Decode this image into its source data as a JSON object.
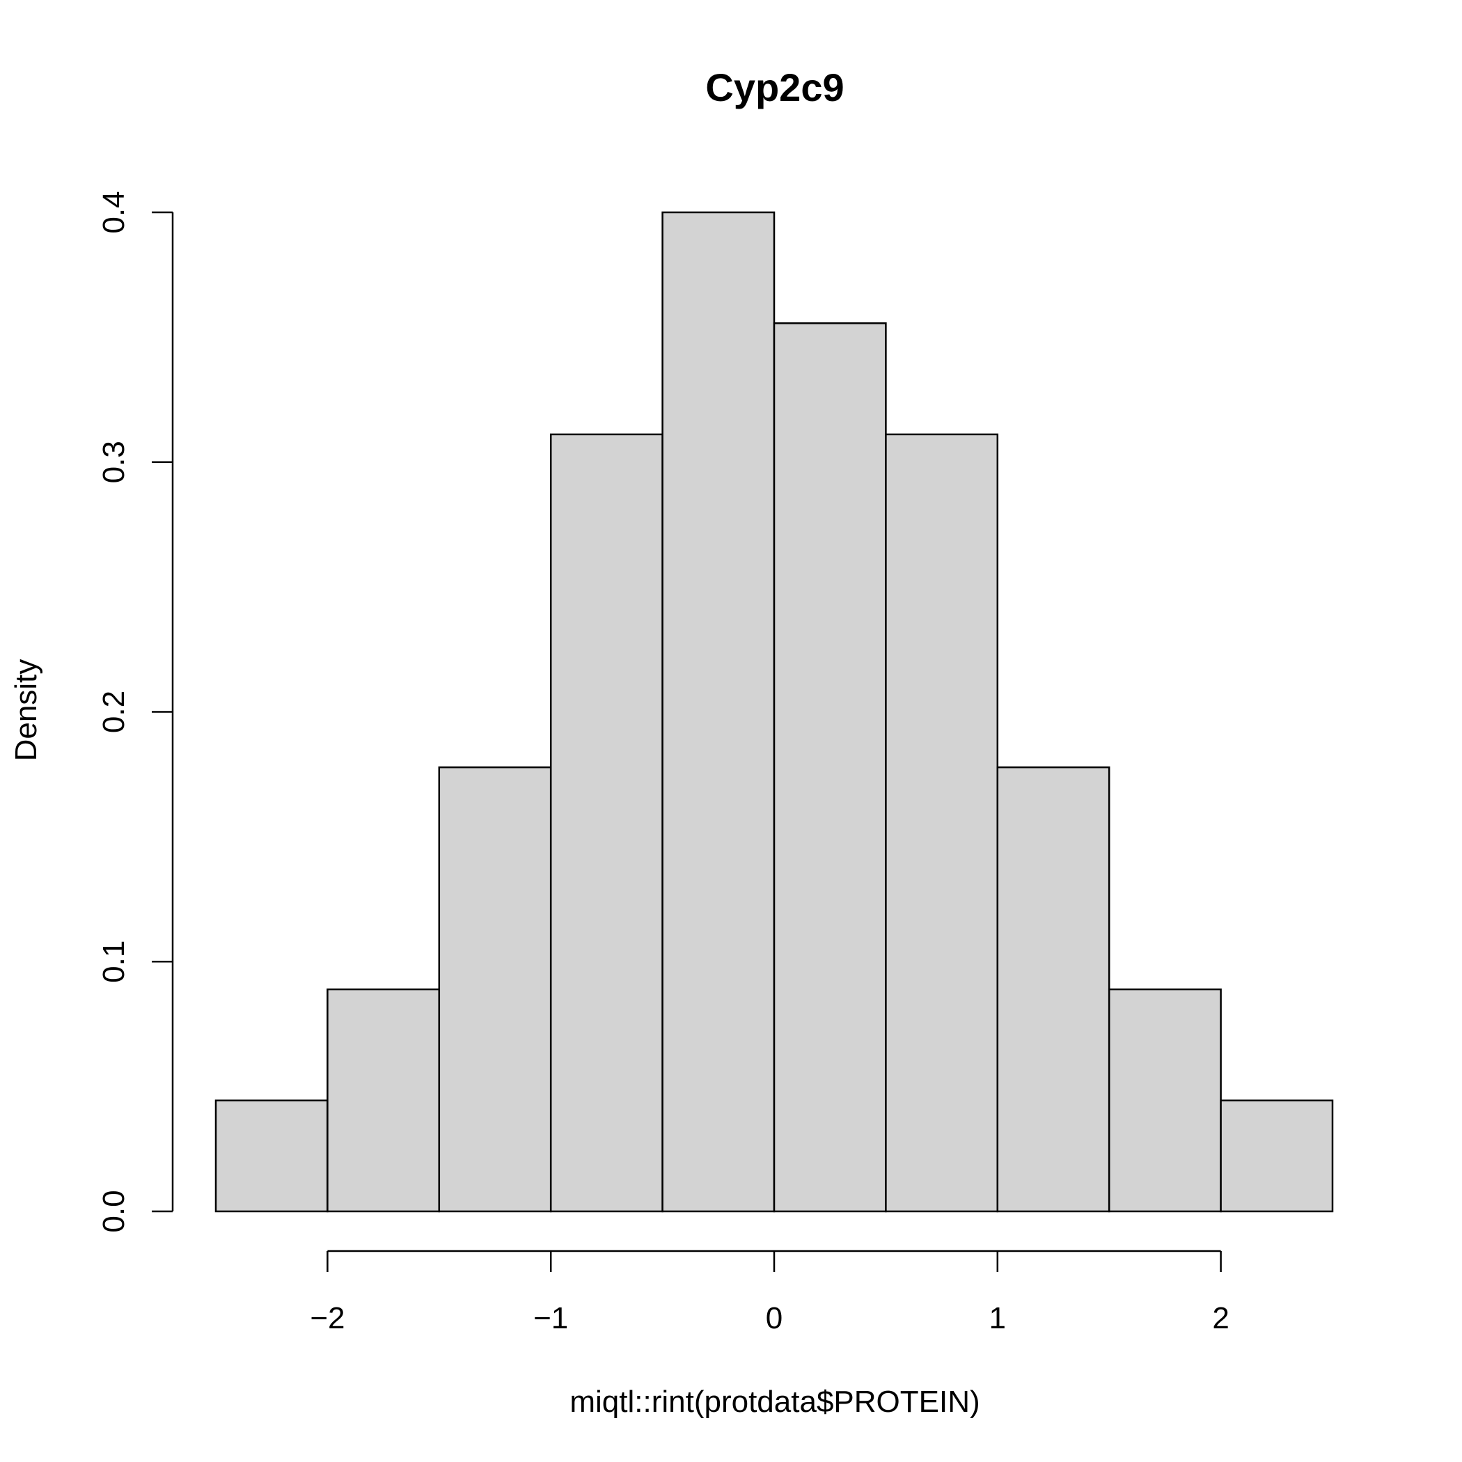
{
  "chart_data": {
    "type": "bar",
    "subtype": "histogram",
    "title": "Cyp2c9",
    "xlabel": "miqtl::rint(protdata$PROTEIN)",
    "ylabel": "Density",
    "bin_edges": [
      -2.5,
      -2.0,
      -1.5,
      -1.0,
      -0.5,
      0.0,
      0.5,
      1.0,
      1.5,
      2.0,
      2.5
    ],
    "values": [
      0.0444,
      0.0889,
      0.1778,
      0.3111,
      0.4,
      0.3556,
      0.3111,
      0.1778,
      0.0889,
      0.0444
    ],
    "xlim": [
      -2.5,
      2.5
    ],
    "ylim": [
      0,
      0.4
    ],
    "x_ticks": [
      -2,
      -1,
      0,
      1,
      2
    ],
    "x_tick_labels": [
      "−2",
      "−1",
      "0",
      "1",
      "2"
    ],
    "y_ticks": [
      0,
      0.1,
      0.2,
      0.3,
      0.4
    ],
    "y_tick_labels": [
      "0.0",
      "0.1",
      "0.2",
      "0.3",
      "0.4"
    ],
    "grid": false,
    "legend": "none",
    "bar_color": "#d3d3d3",
    "edge_color": "#000000"
  }
}
